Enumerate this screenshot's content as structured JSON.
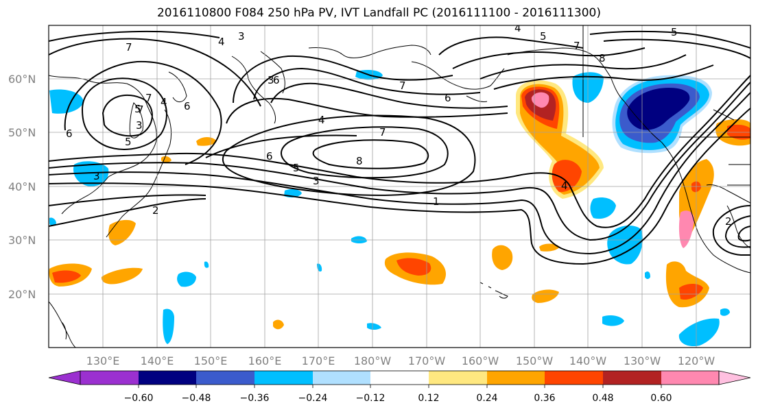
{
  "title": "2016110800 F084 250 hPa PV, IVT Landfall PC (2016111100 - 2016111300)",
  "lat_labels": [
    "60°N",
    "50°N",
    "40°N",
    "30°N",
    "20°N"
  ],
  "lon_labels": [
    "130°E",
    "140°E",
    "150°E",
    "160°E",
    "170°E",
    "180°W",
    "170°W",
    "160°W",
    "150°W",
    "140°W",
    "130°W",
    "120°W"
  ],
  "contour_labels": [
    "7",
    "4",
    "3",
    "4",
    "5",
    "7",
    "6",
    "6",
    "3",
    "5",
    "7",
    "4",
    "7",
    "6",
    "3",
    "6",
    "5",
    "4",
    "7",
    "6",
    "5",
    "8",
    "3",
    "1",
    "2",
    "4",
    "2",
    "5",
    "7",
    "8",
    "3"
  ],
  "colorbar": {
    "ticks": [
      "−0.60",
      "−0.48",
      "−0.36",
      "−0.24",
      "−0.12",
      "0.12",
      "0.24",
      "0.36",
      "0.48",
      "0.60"
    ],
    "colors": [
      "#9b30d0",
      "#000080",
      "#3b5bcc",
      "#00bfff",
      "#b0e0ff",
      "#ffffff",
      "#ffe880",
      "#ffa500",
      "#ff4500",
      "#b22222",
      "#ff88b0",
      "#ffc0e0"
    ]
  },
  "colors": {
    "deep_navy": "#000080",
    "blue": "#3b5bcc",
    "cyan": "#00bfff",
    "light_blue": "#b0e0ff",
    "yellow": "#ffe880",
    "orange": "#ffa500",
    "red_orange": "#ff4500",
    "dark_red": "#b22222",
    "pink": "#ff88b0"
  }
}
